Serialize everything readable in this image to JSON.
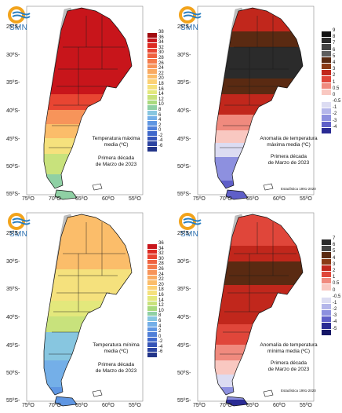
{
  "latitudes": [
    "25ºS-",
    "30ºS-",
    "35ºS-",
    "40ºS-",
    "45ºS-",
    "50ºS-",
    "55ºS-"
  ],
  "longitudes": [
    "75ºO",
    "70ºO",
    "65ºO",
    "60ºO",
    "55ºO"
  ],
  "logo_text": "SMN",
  "panels": {
    "tmax": {
      "caption_1": "Temperatura máxima",
      "caption_2": "media (ºC)",
      "period_1": "Primera década",
      "period_2": "de Marzo de 2023",
      "legend": {
        "labels": [
          "38",
          "36",
          "34",
          "32",
          "30",
          "28",
          "26",
          "24",
          "22",
          "20",
          "18",
          "16",
          "14",
          "12",
          "10",
          "8",
          "6",
          "4",
          "2",
          "0",
          "-2",
          "-4",
          "-6"
        ],
        "colors": [
          "#a10a0f",
          "#c8151b",
          "#dd2a22",
          "#e84532",
          "#ef6240",
          "#f47b4c",
          "#f7945a",
          "#f9aa62",
          "#fbbd6a",
          "#fcd175",
          "#f5e17d",
          "#e3e87c",
          "#c8e27c",
          "#a9da7e",
          "#8fd0a4",
          "#87c6e0",
          "#74afe8",
          "#5f96e2",
          "#4f7fd8",
          "#3f68cb",
          "#3554b7",
          "#2c44a1",
          "#233589"
        ]
      }
    },
    "tmax_anom": {
      "caption_1": "Anomalía de temperatura",
      "caption_2": "máxima media (ºC)",
      "period_1": "Primera década",
      "period_2": "de Marzo de 2023",
      "statistics": "Estadística 1991-2020",
      "legend": {
        "labels": [
          "9",
          "8",
          "7",
          "6",
          "5",
          "4",
          "3",
          "2",
          "1",
          "0.5",
          "0",
          "-0.5",
          "-1",
          "-2",
          "-3",
          "-4"
        ],
        "colors": [
          "#111111",
          "#2b2b2b",
          "#444444",
          "#5e5e5e",
          "#5a2a12",
          "#8a3a15",
          "#c1271c",
          "#e0463a",
          "#f08a7e",
          "#f9c8c1",
          "#ffffff",
          "#dcdcf2",
          "#b4b6ea",
          "#8d90df",
          "#5f5fc8",
          "#2a2b94"
        ]
      }
    },
    "tmin": {
      "caption_1": "Temperatura mínima",
      "caption_2": "media (ºC)",
      "period_1": "Primera década",
      "period_2": "de Marzo de 2023",
      "legend": {
        "labels": [
          "36",
          "34",
          "32",
          "30",
          "28",
          "26",
          "24",
          "22",
          "20",
          "18",
          "16",
          "14",
          "12",
          "10",
          "8",
          "6",
          "4",
          "2",
          "0",
          "-2",
          "-4",
          "-6"
        ],
        "colors": [
          "#c8151b",
          "#dd2a22",
          "#e84532",
          "#ef6240",
          "#f47b4c",
          "#f7945a",
          "#f9aa62",
          "#fbbd6a",
          "#fcd175",
          "#f5e17d",
          "#e3e87c",
          "#c8e27c",
          "#a9da7e",
          "#8fd0a4",
          "#87c6e0",
          "#74afe8",
          "#5f96e2",
          "#4f7fd8",
          "#3f68cb",
          "#3554b7",
          "#2c44a1",
          "#233589"
        ]
      }
    },
    "tmin_anom": {
      "caption_1": "Anomalía de temperatura",
      "caption_2": "mínima media (ºC)",
      "period_1": "Primera década",
      "period_2": "de Marzo de 2023",
      "statistics": "Estadística 1991-2020",
      "legend": {
        "labels": [
          "7",
          "6",
          "5",
          "4",
          "3",
          "2",
          "1",
          "0.5",
          "0",
          "-0.5",
          "-1",
          "-2",
          "-3",
          "-4",
          "-5"
        ],
        "colors": [
          "#2b2b2b",
          "#444444",
          "#5a2a12",
          "#8a3a15",
          "#c1271c",
          "#e0463a",
          "#f08a7e",
          "#f9c8c1",
          "#ffffff",
          "#dcdcf2",
          "#b4b6ea",
          "#8d90df",
          "#5f5fc8",
          "#2a2b94",
          "#141566"
        ]
      }
    }
  }
}
